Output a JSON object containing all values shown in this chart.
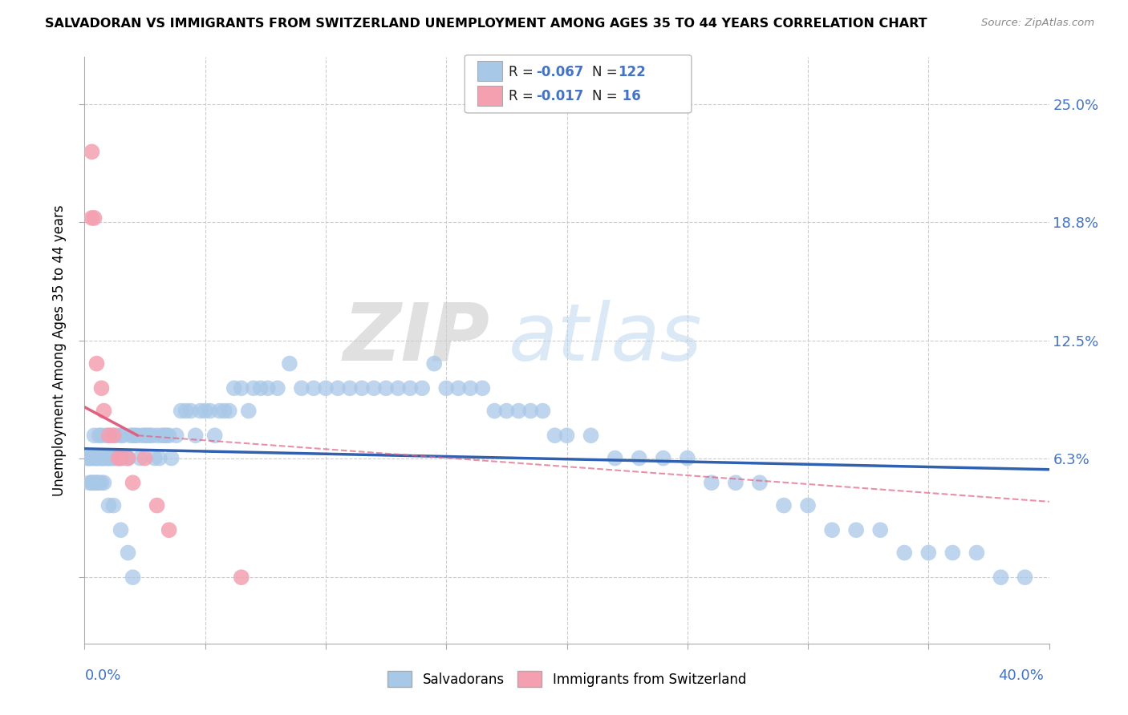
{
  "title": "SALVADORAN VS IMMIGRANTS FROM SWITZERLAND UNEMPLOYMENT AMONG AGES 35 TO 44 YEARS CORRELATION CHART",
  "source": "Source: ZipAtlas.com",
  "ylabel": "Unemployment Among Ages 35 to 44 years",
  "ytick_values": [
    0.0,
    0.063,
    0.125,
    0.188,
    0.25
  ],
  "ytick_labels": [
    "",
    "6.3%",
    "12.5%",
    "18.8%",
    "25.0%"
  ],
  "xmin": 0.0,
  "xmax": 0.4,
  "ymin": -0.035,
  "ymax": 0.275,
  "color_blue": "#a8c8e8",
  "color_pink": "#f4a0b0",
  "color_blue_dark": "#3060b0",
  "color_blue_text": "#4472c4",
  "color_pink_dark": "#e06080",
  "watermark_zip": "ZIP",
  "watermark_atlas": "atlas",
  "salv_x": [
    0.001,
    0.002,
    0.002,
    0.003,
    0.003,
    0.004,
    0.004,
    0.005,
    0.005,
    0.005,
    0.006,
    0.006,
    0.007,
    0.007,
    0.007,
    0.008,
    0.008,
    0.009,
    0.009,
    0.01,
    0.01,
    0.011,
    0.011,
    0.012,
    0.013,
    0.013,
    0.014,
    0.015,
    0.015,
    0.016,
    0.017,
    0.018,
    0.019,
    0.02,
    0.021,
    0.022,
    0.023,
    0.024,
    0.025,
    0.026,
    0.027,
    0.028,
    0.029,
    0.03,
    0.031,
    0.032,
    0.033,
    0.034,
    0.035,
    0.036,
    0.038,
    0.04,
    0.042,
    0.044,
    0.046,
    0.048,
    0.05,
    0.052,
    0.054,
    0.056,
    0.058,
    0.06,
    0.062,
    0.065,
    0.068,
    0.07,
    0.073,
    0.076,
    0.08,
    0.085,
    0.09,
    0.095,
    0.1,
    0.105,
    0.11,
    0.115,
    0.12,
    0.125,
    0.13,
    0.135,
    0.14,
    0.145,
    0.15,
    0.155,
    0.16,
    0.165,
    0.17,
    0.175,
    0.18,
    0.185,
    0.19,
    0.195,
    0.2,
    0.21,
    0.22,
    0.23,
    0.24,
    0.25,
    0.26,
    0.27,
    0.28,
    0.29,
    0.3,
    0.31,
    0.32,
    0.33,
    0.34,
    0.35,
    0.36,
    0.37,
    0.38,
    0.39,
    0.002,
    0.003,
    0.004,
    0.005,
    0.006,
    0.007,
    0.008,
    0.01,
    0.012,
    0.015,
    0.018,
    0.02
  ],
  "salv_y": [
    0.063,
    0.063,
    0.063,
    0.063,
    0.05,
    0.063,
    0.075,
    0.063,
    0.063,
    0.05,
    0.063,
    0.075,
    0.063,
    0.063,
    0.075,
    0.063,
    0.063,
    0.063,
    0.075,
    0.063,
    0.063,
    0.063,
    0.075,
    0.063,
    0.063,
    0.075,
    0.063,
    0.063,
    0.075,
    0.075,
    0.063,
    0.063,
    0.075,
    0.075,
    0.075,
    0.075,
    0.063,
    0.075,
    0.075,
    0.075,
    0.075,
    0.075,
    0.063,
    0.075,
    0.063,
    0.075,
    0.075,
    0.075,
    0.075,
    0.063,
    0.075,
    0.088,
    0.088,
    0.088,
    0.075,
    0.088,
    0.088,
    0.088,
    0.075,
    0.088,
    0.088,
    0.088,
    0.1,
    0.1,
    0.088,
    0.1,
    0.1,
    0.1,
    0.1,
    0.113,
    0.1,
    0.1,
    0.1,
    0.1,
    0.1,
    0.1,
    0.1,
    0.1,
    0.1,
    0.1,
    0.1,
    0.113,
    0.1,
    0.1,
    0.1,
    0.1,
    0.088,
    0.088,
    0.088,
    0.088,
    0.088,
    0.075,
    0.075,
    0.075,
    0.063,
    0.063,
    0.063,
    0.063,
    0.05,
    0.05,
    0.05,
    0.038,
    0.038,
    0.025,
    0.025,
    0.025,
    0.013,
    0.013,
    0.013,
    0.013,
    0.0,
    0.0,
    0.05,
    0.05,
    0.05,
    0.05,
    0.05,
    0.05,
    0.05,
    0.038,
    0.038,
    0.025,
    0.013,
    0.0
  ],
  "swiss_x": [
    0.003,
    0.003,
    0.004,
    0.005,
    0.007,
    0.008,
    0.01,
    0.012,
    0.014,
    0.015,
    0.018,
    0.02,
    0.025,
    0.03,
    0.035,
    0.065
  ],
  "swiss_y": [
    0.225,
    0.19,
    0.19,
    0.113,
    0.1,
    0.088,
    0.075,
    0.075,
    0.063,
    0.063,
    0.063,
    0.05,
    0.063,
    0.038,
    0.025,
    0.0
  ]
}
